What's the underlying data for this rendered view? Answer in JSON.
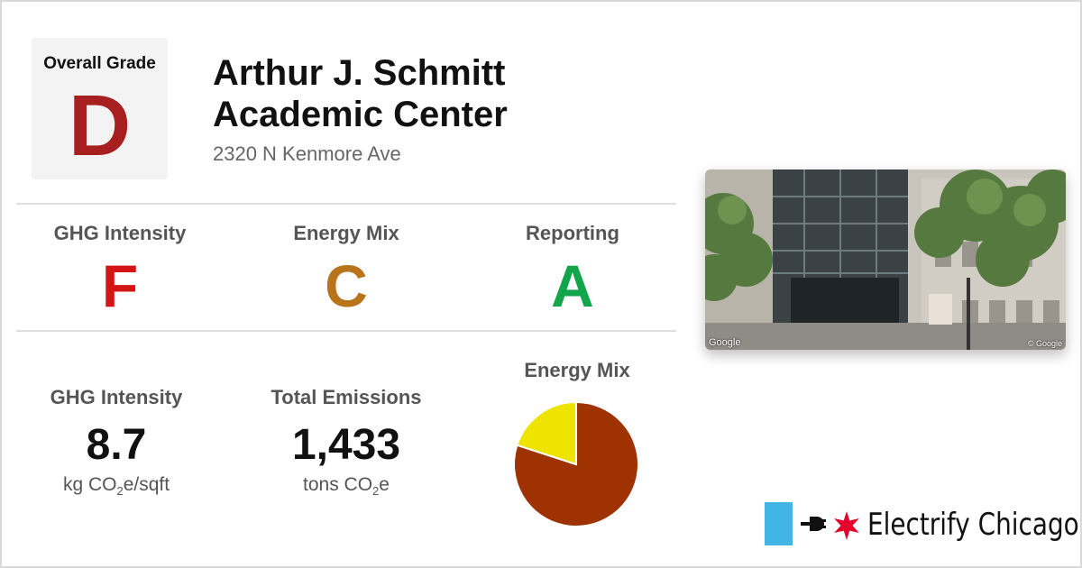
{
  "overall": {
    "label": "Overall Grade",
    "grade": "D",
    "grade_color": "#a81f1f"
  },
  "building": {
    "name": "Arthur J. Schmitt Academic Center",
    "address": "2320 N Kenmore Ave"
  },
  "grades": [
    {
      "label": "GHG Intensity",
      "grade": "F",
      "color": "#d41515"
    },
    {
      "label": "Energy Mix",
      "grade": "C",
      "color": "#b8741a"
    },
    {
      "label": "Reporting",
      "grade": "A",
      "color": "#12a54a"
    }
  ],
  "stats": {
    "ghg": {
      "label": "GHG Intensity",
      "value": "8.7",
      "unit_pre": "kg CO",
      "unit_sub": "2",
      "unit_post": "e/sqft"
    },
    "emissions": {
      "label": "Total Emissions",
      "value": "1,433",
      "unit_pre": "tons CO",
      "unit_sub": "2",
      "unit_post": "e"
    }
  },
  "photo": {
    "watermark_left": "Google",
    "watermark_right": "© Google"
  },
  "logo": {
    "text": "Electrify Chicago",
    "bar_color": "#41b6e6",
    "star_color": "#e4002b",
    "icon": "plug-icon"
  },
  "chart_data": {
    "type": "pie",
    "title": "Energy Mix",
    "slices": [
      {
        "value": 80,
        "color": "#9e3200"
      },
      {
        "value": 20,
        "color": "#efe300"
      }
    ]
  }
}
